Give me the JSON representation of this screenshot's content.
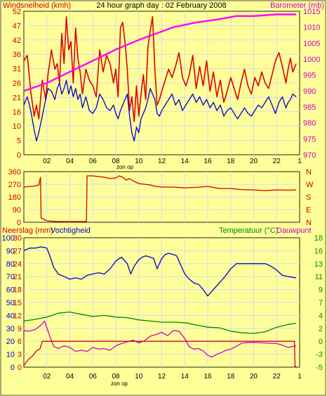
{
  "chart_data": [
    {
      "type": "line",
      "title": "24 hour graph day : 02 February 2008",
      "ylabel_left": "Windsnelheid (kmh)",
      "ylabel_right": "Barometer (mb)",
      "xlabel": "zon op",
      "x_ticks": [
        "02",
        "04",
        "06",
        "08",
        "10",
        "12",
        "14",
        "16",
        "18",
        "20",
        "22",
        "1"
      ],
      "y_left_ticks": [
        "52",
        "47",
        "42",
        "36",
        "31",
        "26",
        "21",
        "16",
        "10",
        "5",
        "0"
      ],
      "y_left_range": [
        0,
        52
      ],
      "y_right_ticks": [
        "1015",
        "1010",
        "1005",
        "1000",
        "995",
        "990",
        "985",
        "980",
        "975",
        "970"
      ],
      "y_right_range": [
        970,
        1016
      ],
      "x_range": [
        0,
        24
      ],
      "grid": true,
      "series": [
        {
          "role": "gust",
          "axis": "left",
          "color": "#dd0000",
          "x": [
            0,
            0.3,
            0.6,
            0.9,
            1.1,
            1.3,
            1.6,
            1.9,
            2.1,
            2.4,
            2.7,
            2.9,
            3.1,
            3.3,
            3.5,
            3.7,
            3.9,
            4.1,
            4.3,
            4.5,
            4.7,
            4.9,
            5.1,
            5.4,
            5.7,
            6.0,
            6.3,
            6.6,
            6.9,
            7.2,
            7.5,
            7.8,
            8.0,
            8.2,
            8.4,
            8.6,
            8.8,
            9.0,
            9.2,
            9.4,
            9.6,
            9.8,
            10.0,
            10.2,
            10.4,
            10.6,
            10.8,
            11.0,
            11.2,
            11.4,
            11.6,
            11.8,
            12.0,
            12.3,
            12.6,
            12.9,
            13.2,
            13.5,
            13.8,
            14.1,
            14.4,
            14.7,
            15.0,
            15.3,
            15.6,
            15.9,
            16.2,
            16.5,
            16.8,
            17.1,
            17.4,
            17.7,
            18.0,
            18.3,
            18.6,
            18.9,
            19.2,
            19.5,
            19.8,
            20.1,
            20.4,
            20.7,
            21.0,
            21.3,
            21.6,
            21.9,
            22.2,
            22.5,
            22.8,
            23.0,
            23.2,
            23.4,
            23.7
          ],
          "y": [
            34,
            36,
            23,
            14,
            18,
            13,
            27,
            20,
            29,
            38,
            31,
            33,
            26,
            44,
            33,
            50,
            38,
            41,
            26,
            46,
            35,
            30,
            22,
            31,
            27,
            25,
            21,
            38,
            30,
            36,
            33,
            26,
            31,
            21,
            46,
            48,
            41,
            31,
            16,
            21,
            12,
            25,
            14,
            22,
            29,
            20,
            39,
            45,
            50,
            31,
            18,
            20,
            23,
            27,
            31,
            28,
            32,
            37,
            28,
            25,
            29,
            36,
            24,
            32,
            25,
            34,
            23,
            30,
            21,
            27,
            19,
            23,
            28,
            24,
            20,
            26,
            31,
            25,
            22,
            28,
            25,
            30,
            26,
            24,
            29,
            34,
            37,
            32,
            26,
            31,
            35,
            30,
            33
          ]
        },
        {
          "role": "average",
          "axis": "left",
          "color": "#0000cc",
          "x": [
            0,
            0.3,
            0.6,
            0.9,
            1.1,
            1.3,
            1.6,
            1.9,
            2.1,
            2.4,
            2.7,
            2.9,
            3.1,
            3.3,
            3.5,
            3.7,
            3.9,
            4.1,
            4.3,
            4.5,
            4.7,
            4.9,
            5.1,
            5.4,
            5.7,
            6.0,
            6.3,
            6.6,
            6.9,
            7.2,
            7.5,
            7.8,
            8.0,
            8.2,
            8.4,
            8.6,
            8.8,
            9.0,
            9.2,
            9.4,
            9.6,
            9.8,
            10.0,
            10.2,
            10.4,
            10.6,
            10.8,
            11.0,
            11.2,
            11.4,
            11.6,
            11.8,
            12.0,
            12.3,
            12.6,
            12.9,
            13.2,
            13.5,
            13.8,
            14.1,
            14.4,
            14.7,
            15.0,
            15.3,
            15.6,
            15.9,
            16.2,
            16.5,
            16.8,
            17.1,
            17.4,
            17.7,
            18.0,
            18.3,
            18.6,
            18.9,
            19.2,
            19.5,
            19.8,
            20.1,
            20.4,
            20.7,
            21.0,
            21.3,
            21.6,
            21.9,
            22.2,
            22.5,
            22.8,
            23.0,
            23.2,
            23.4,
            23.7
          ],
          "y": [
            18,
            21,
            16,
            9,
            5,
            8,
            14,
            20,
            24,
            23,
            20,
            24,
            26,
            22,
            24,
            27,
            22,
            25,
            21,
            24,
            20,
            22,
            17,
            21,
            16,
            15,
            17,
            22,
            20,
            17,
            16,
            18,
            15,
            13,
            16,
            18,
            20,
            22,
            14,
            8,
            5,
            10,
            8,
            13,
            15,
            17,
            20,
            24,
            22,
            20,
            15,
            14,
            16,
            18,
            20,
            22,
            18,
            20,
            16,
            18,
            20,
            22,
            19,
            21,
            18,
            20,
            17,
            19,
            16,
            18,
            14,
            16,
            17,
            15,
            13,
            15,
            17,
            15,
            14,
            16,
            18,
            17,
            19,
            21,
            18,
            15,
            19,
            21,
            17,
            19,
            20,
            22,
            21
          ]
        },
        {
          "role": "pressure",
          "axis": "right",
          "color": "#ff00ff",
          "x": [
            0,
            2,
            4,
            6,
            8,
            10,
            11.5,
            13,
            15,
            17,
            18.5,
            20,
            22,
            23.7
          ],
          "y": [
            990,
            992.5,
            996,
            999.5,
            1003,
            1006,
            1008,
            1010,
            1011.5,
            1012.5,
            1013.5,
            1013.5,
            1014,
            1014
          ]
        }
      ]
    },
    {
      "type": "line",
      "ylabel_left": "",
      "y_left_ticks": [
        "360",
        "270",
        "180",
        "90",
        "0"
      ],
      "y_left_range": [
        0,
        360
      ],
      "y_right_ticks": [
        "N",
        "W",
        "S",
        "E",
        "N"
      ],
      "x_range": [
        0,
        24
      ],
      "grid": true,
      "series": [
        {
          "role": "wind-direction",
          "axis": "left",
          "color": "#cc0000",
          "x": [
            0,
            0.5,
            1.0,
            1.3,
            1.45,
            1.5,
            2.0,
            3.0,
            4.0,
            5.0,
            5.45,
            5.5,
            6.0,
            6.5,
            7.0,
            7.5,
            8.0,
            8.3,
            8.6,
            8.9,
            9.2,
            9.5,
            10.0,
            10.5,
            11.0,
            11.5,
            12.0,
            13.0,
            14.0,
            15.0,
            16.0,
            17.0,
            18.0,
            19.0,
            20.0,
            21.0,
            22.0,
            23.0,
            23.7
          ],
          "y": [
            250,
            255,
            258,
            265,
            320,
            30,
            10,
            5,
            5,
            5,
            5,
            330,
            330,
            325,
            320,
            310,
            315,
            330,
            320,
            300,
            310,
            295,
            275,
            270,
            265,
            255,
            250,
            250,
            245,
            248,
            255,
            240,
            240,
            232,
            230,
            225,
            230,
            228,
            230
          ]
        }
      ]
    },
    {
      "type": "line",
      "ylabel_left": "Neerslag (mm)",
      "ylabel_left2": "Vochtigheid",
      "ylabel_right": "Temperatuur (°C)",
      "ylabel_right2": "Dauwpunt",
      "xlabel": "zon op",
      "x_ticks": [
        "02",
        "04",
        "06",
        "08",
        "10",
        "12",
        "14",
        "16",
        "18",
        "20",
        "22",
        "1"
      ],
      "y_rain_ticks": [
        "30",
        "27",
        "24",
        "21",
        "18",
        "15",
        "12",
        "9",
        "6",
        "3",
        "0"
      ],
      "y_rain_range": [
        0,
        30
      ],
      "y_humidity_ticks": [
        "100",
        "90",
        "80",
        "70",
        "60",
        "50",
        "40",
        "30",
        "20",
        "10",
        "0"
      ],
      "y_humidity_range": [
        0,
        100
      ],
      "y_temperature_ticks": [
        "18",
        "16",
        "13",
        "11",
        "9",
        "7",
        "4",
        "2",
        "0",
        "-3",
        "-5"
      ],
      "y_temperature_range": [
        -5,
        18
      ],
      "x_range": [
        0,
        24
      ],
      "grid": true,
      "series": [
        {
          "role": "humidity",
          "axis": "humidity",
          "color": "#0000cc",
          "x": [
            0,
            0.5,
            1.0,
            1.5,
            2.0,
            2.3,
            2.6,
            3.0,
            3.5,
            4.0,
            4.5,
            5.0,
            5.5,
            6.0,
            6.5,
            7.0,
            7.5,
            8.0,
            8.5,
            9.0,
            9.3,
            9.6,
            10.0,
            10.3,
            10.6,
            11.0,
            11.3,
            11.6,
            12.0,
            12.3,
            12.6,
            13.0,
            13.3,
            13.6,
            14.0,
            14.4,
            14.8,
            15.2,
            15.6,
            16.0,
            16.5,
            17.0,
            17.5,
            18.0,
            18.5,
            19.0,
            19.5,
            20.0,
            20.5,
            21.0,
            21.5,
            22.0,
            22.5,
            23.0,
            23.7
          ],
          "y": [
            90,
            92,
            92,
            93,
            92,
            85,
            77,
            72,
            70,
            68,
            69,
            68,
            71,
            72,
            73,
            72,
            76,
            82,
            85,
            80,
            72,
            78,
            83,
            85,
            86,
            85,
            84,
            76,
            84,
            87,
            88,
            87,
            86,
            80,
            72,
            68,
            65,
            64,
            60,
            55,
            60,
            65,
            70,
            76,
            80,
            80,
            80,
            80,
            80,
            80,
            78,
            75,
            71,
            70,
            69
          ]
        },
        {
          "role": "temperature",
          "axis": "temperature",
          "color": "#008800",
          "x": [
            0,
            1,
            2,
            3,
            4,
            5,
            6,
            7,
            8,
            9,
            10,
            11,
            12,
            13,
            14,
            15,
            16,
            17,
            18,
            19,
            20,
            21,
            22,
            23,
            23.7
          ],
          "y": [
            3.2,
            3.5,
            3.9,
            4.6,
            4.8,
            4.4,
            4.0,
            4.2,
            3.9,
            3.8,
            3.4,
            3.2,
            3.0,
            3.0,
            2.9,
            2.5,
            2.1,
            2.0,
            1.4,
            1.1,
            1.0,
            1.3,
            2.1,
            2.6,
            2.8
          ]
        },
        {
          "role": "dew-point",
          "axis": "temperature",
          "color": "#cc00cc",
          "x": [
            0,
            0.5,
            1.0,
            1.5,
            1.8,
            2.0,
            2.3,
            2.6,
            3.0,
            3.5,
            4.0,
            4.5,
            5.0,
            5.5,
            6.0,
            6.5,
            7.0,
            7.5,
            8.0,
            8.5,
            9.0,
            9.5,
            10.0,
            10.5,
            11.0,
            11.5,
            12.0,
            12.5,
            13.0,
            13.5,
            14.0,
            14.4,
            14.8,
            15.2,
            15.6,
            16.0,
            16.4,
            16.8,
            17.2,
            17.6,
            18.0,
            18.5,
            19.0,
            20.0,
            21.0,
            22.0,
            22.5,
            23.0,
            23.7
          ],
          "y": [
            1.5,
            1.4,
            1.7,
            2.5,
            3.2,
            2.0,
            0.2,
            -1.3,
            -1.7,
            -1.2,
            -1.5,
            -2.2,
            -2.0,
            -2.2,
            -1.5,
            -1.8,
            -1.7,
            -2.0,
            -1.2,
            -0.8,
            -0.5,
            -0.2,
            -0.7,
            -0.3,
            0.5,
            0.8,
            1.2,
            0.6,
            1.5,
            1.4,
            0.1,
            -1.4,
            -1.8,
            -1.7,
            -2.1,
            -2.9,
            -3.2,
            -2.7,
            -2.4,
            -2.0,
            -1.8,
            -1.3,
            -0.7,
            -0.6,
            -0.7,
            -0.8,
            -1.1,
            -1.5,
            -1.2
          ]
        },
        {
          "role": "rain",
          "axis": "rain",
          "color": "#cc0033",
          "x": [
            0,
            0.4,
            0.8,
            1.1,
            1.4,
            1.6,
            23.55,
            23.6,
            23.7
          ],
          "y": [
            0.4,
            1.8,
            2.7,
            3.8,
            4.2,
            6.0,
            6.0,
            0.2,
            0.2
          ]
        }
      ]
    }
  ]
}
